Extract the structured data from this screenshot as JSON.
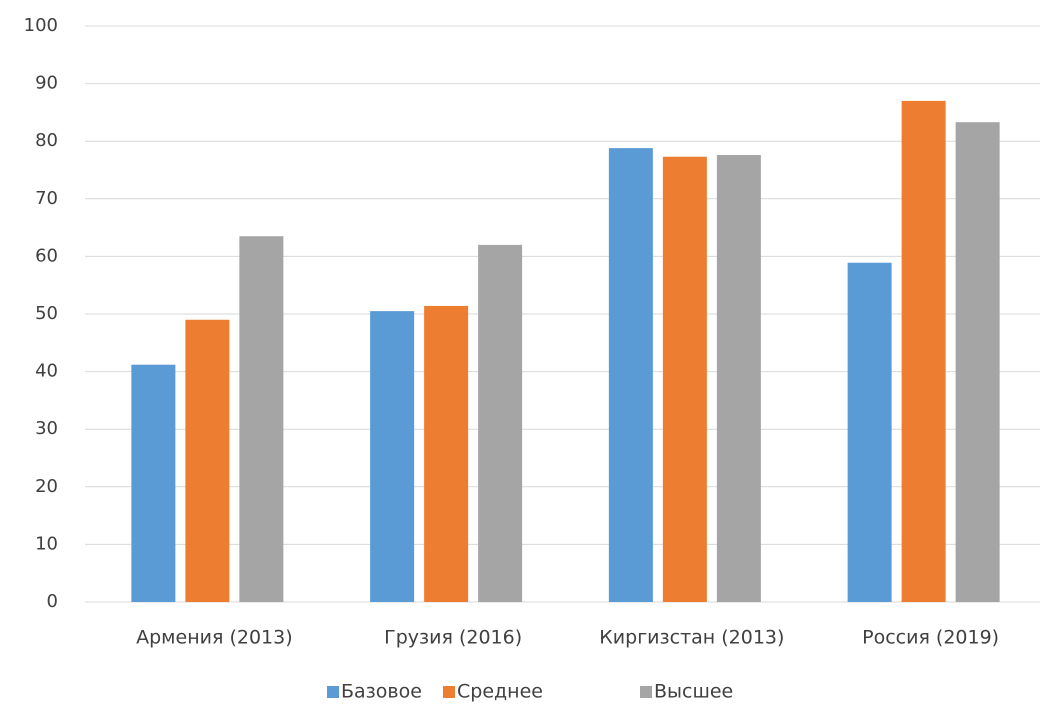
{
  "chart_data": {
    "type": "bar",
    "categories": [
      "Армения (2013)",
      "Грузия (2016)",
      "Киргизстан (2013)",
      "Россия (2019)"
    ],
    "series": [
      {
        "name": "Базовое",
        "color": "#5b9bd5",
        "values": [
          41.2,
          50.5,
          78.8,
          58.9
        ]
      },
      {
        "name": "Среднее",
        "color": "#ed7d31",
        "values": [
          49.0,
          51.4,
          77.3,
          87.0
        ]
      },
      {
        "name": "Высшее",
        "color": "#a5a5a5",
        "values": [
          63.5,
          62.0,
          77.6,
          83.3
        ]
      }
    ],
    "ylim": [
      0,
      100
    ],
    "yticks": [
      0,
      10,
      20,
      30,
      40,
      50,
      60,
      70,
      80,
      90,
      100
    ],
    "grid": true,
    "legend": "bottom"
  }
}
